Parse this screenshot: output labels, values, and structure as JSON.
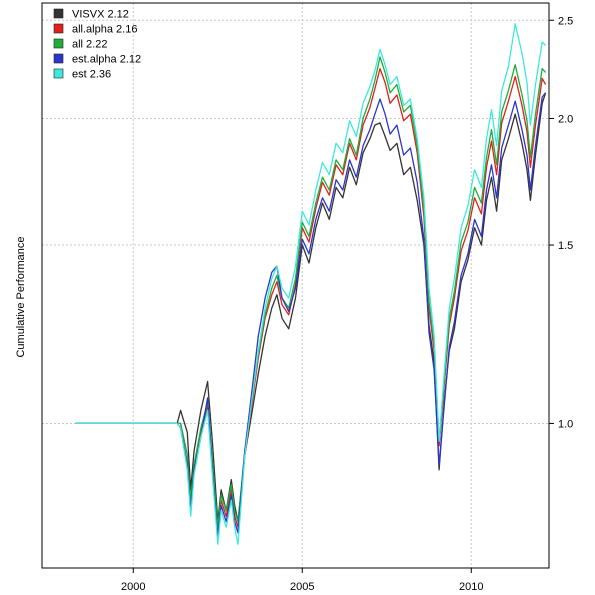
{
  "chart_data": {
    "type": "line",
    "ylabel": "Cumulative Performance",
    "xlabel": "",
    "y_scale": "log",
    "xlim": [
      1997.3,
      2012.3
    ],
    "ylim": [
      0.72,
      2.6
    ],
    "x_ticks": [
      2000,
      2005,
      2010
    ],
    "x_tick_labels": [
      "2000",
      "2005",
      "2010"
    ],
    "y_ticks": [
      1.0,
      1.5,
      2.0,
      2.5
    ],
    "y_tick_labels": [
      "1.0",
      "1.5",
      "2.0",
      "2.5"
    ],
    "y_axis_side": "right",
    "grid": true,
    "legend_position": "top-left",
    "legend_labels": [
      "VISVX 2.12",
      "all.alpha 2.16",
      "all 2.22",
      "est.alpha 2.12",
      "est 2.36"
    ],
    "colors": [
      "#333333",
      "#e0201c",
      "#1fae3a",
      "#2b35c8",
      "#3fe8dc"
    ],
    "x": [
      1998.3,
      2001.3,
      2001.4,
      2001.6,
      2001.7,
      2001.8,
      2002.0,
      2002.2,
      2002.35,
      2002.5,
      2002.6,
      2002.75,
      2002.9,
      2003.0,
      2003.1,
      2003.3,
      2003.5,
      2003.7,
      2003.9,
      2004.1,
      2004.25,
      2004.4,
      2004.6,
      2004.8,
      2005.0,
      2005.2,
      2005.4,
      2005.6,
      2005.8,
      2006.0,
      2006.2,
      2006.4,
      2006.6,
      2006.8,
      2007.0,
      2007.15,
      2007.3,
      2007.45,
      2007.6,
      2007.8,
      2008.0,
      2008.2,
      2008.4,
      2008.6,
      2008.75,
      2008.9,
      2009.05,
      2009.2,
      2009.35,
      2009.5,
      2009.7,
      2009.9,
      2010.1,
      2010.3,
      2010.45,
      2010.6,
      2010.75,
      2010.9,
      2011.1,
      2011.3,
      2011.5,
      2011.65,
      2011.75,
      2011.9,
      2012.1,
      2012.2
    ],
    "series": [
      {
        "name": "VISVX 2.12",
        "values": [
          1.0,
          1.0,
          1.03,
          0.98,
          0.86,
          0.94,
          1.03,
          1.1,
          0.95,
          0.8,
          0.86,
          0.82,
          0.88,
          0.83,
          0.8,
          0.93,
          1.02,
          1.12,
          1.22,
          1.3,
          1.34,
          1.27,
          1.24,
          1.33,
          1.5,
          1.44,
          1.56,
          1.65,
          1.59,
          1.71,
          1.67,
          1.79,
          1.72,
          1.85,
          1.91,
          1.97,
          1.98,
          1.92,
          1.86,
          1.89,
          1.76,
          1.79,
          1.66,
          1.5,
          1.25,
          1.15,
          0.9,
          1.05,
          1.18,
          1.24,
          1.38,
          1.45,
          1.56,
          1.5,
          1.66,
          1.75,
          1.62,
          1.82,
          1.91,
          2.02,
          1.89,
          1.78,
          1.66,
          1.84,
          2.07,
          2.12
        ]
      },
      {
        "name": "all.alpha 2.16",
        "values": [
          1.0,
          1.0,
          1.0,
          0.93,
          0.84,
          0.91,
          0.98,
          1.04,
          0.9,
          0.78,
          0.84,
          0.81,
          0.86,
          0.81,
          0.79,
          0.93,
          1.04,
          1.16,
          1.27,
          1.34,
          1.38,
          1.31,
          1.28,
          1.37,
          1.56,
          1.51,
          1.63,
          1.73,
          1.68,
          1.8,
          1.76,
          1.89,
          1.82,
          1.97,
          2.05,
          2.14,
          2.24,
          2.17,
          2.07,
          2.11,
          1.99,
          2.02,
          1.85,
          1.6,
          1.3,
          1.18,
          0.95,
          1.09,
          1.25,
          1.33,
          1.48,
          1.55,
          1.67,
          1.61,
          1.79,
          1.9,
          1.76,
          1.98,
          2.08,
          2.2,
          2.06,
          1.94,
          1.79,
          1.97,
          2.19,
          2.16
        ]
      },
      {
        "name": "all 2.22",
        "values": [
          1.0,
          1.0,
          1.0,
          0.93,
          0.84,
          0.91,
          0.99,
          1.05,
          0.91,
          0.79,
          0.85,
          0.82,
          0.87,
          0.82,
          0.8,
          0.94,
          1.05,
          1.17,
          1.28,
          1.36,
          1.4,
          1.33,
          1.3,
          1.39,
          1.58,
          1.53,
          1.65,
          1.75,
          1.7,
          1.82,
          1.78,
          1.91,
          1.84,
          2.0,
          2.09,
          2.18,
          2.3,
          2.22,
          2.12,
          2.16,
          2.03,
          2.06,
          1.88,
          1.63,
          1.32,
          1.2,
          0.96,
          1.1,
          1.27,
          1.35,
          1.51,
          1.58,
          1.71,
          1.65,
          1.83,
          1.95,
          1.8,
          2.03,
          2.13,
          2.26,
          2.11,
          1.99,
          1.83,
          2.02,
          2.24,
          2.22
        ]
      },
      {
        "name": "est.alpha 2.12",
        "values": [
          1.0,
          1.0,
          0.99,
          0.91,
          0.82,
          0.9,
          0.97,
          1.06,
          0.89,
          0.77,
          0.83,
          0.8,
          0.85,
          0.8,
          0.78,
          0.94,
          1.07,
          1.22,
          1.33,
          1.41,
          1.43,
          1.33,
          1.29,
          1.36,
          1.52,
          1.47,
          1.59,
          1.67,
          1.62,
          1.74,
          1.7,
          1.82,
          1.75,
          1.88,
          1.95,
          2.02,
          2.09,
          2.02,
          1.93,
          1.97,
          1.84,
          1.87,
          1.73,
          1.52,
          1.23,
          1.13,
          0.91,
          1.04,
          1.19,
          1.26,
          1.4,
          1.47,
          1.59,
          1.53,
          1.7,
          1.8,
          1.67,
          1.87,
          1.97,
          2.08,
          1.95,
          1.84,
          1.7,
          1.88,
          2.1,
          2.12
        ]
      },
      {
        "name": "est 2.36",
        "values": [
          1.0,
          1.0,
          0.99,
          0.9,
          0.81,
          0.89,
          0.97,
          1.03,
          0.88,
          0.76,
          0.82,
          0.79,
          0.84,
          0.79,
          0.76,
          0.93,
          1.05,
          1.18,
          1.3,
          1.39,
          1.43,
          1.36,
          1.33,
          1.43,
          1.62,
          1.57,
          1.7,
          1.81,
          1.76,
          1.89,
          1.85,
          1.99,
          1.92,
          2.07,
          2.15,
          2.23,
          2.34,
          2.26,
          2.16,
          2.2,
          2.06,
          2.09,
          1.91,
          1.67,
          1.36,
          1.22,
          0.96,
          1.12,
          1.3,
          1.39,
          1.56,
          1.64,
          1.78,
          1.71,
          1.91,
          2.04,
          1.88,
          2.13,
          2.25,
          2.48,
          2.32,
          2.17,
          1.97,
          2.16,
          2.38,
          2.36
        ]
      }
    ]
  }
}
